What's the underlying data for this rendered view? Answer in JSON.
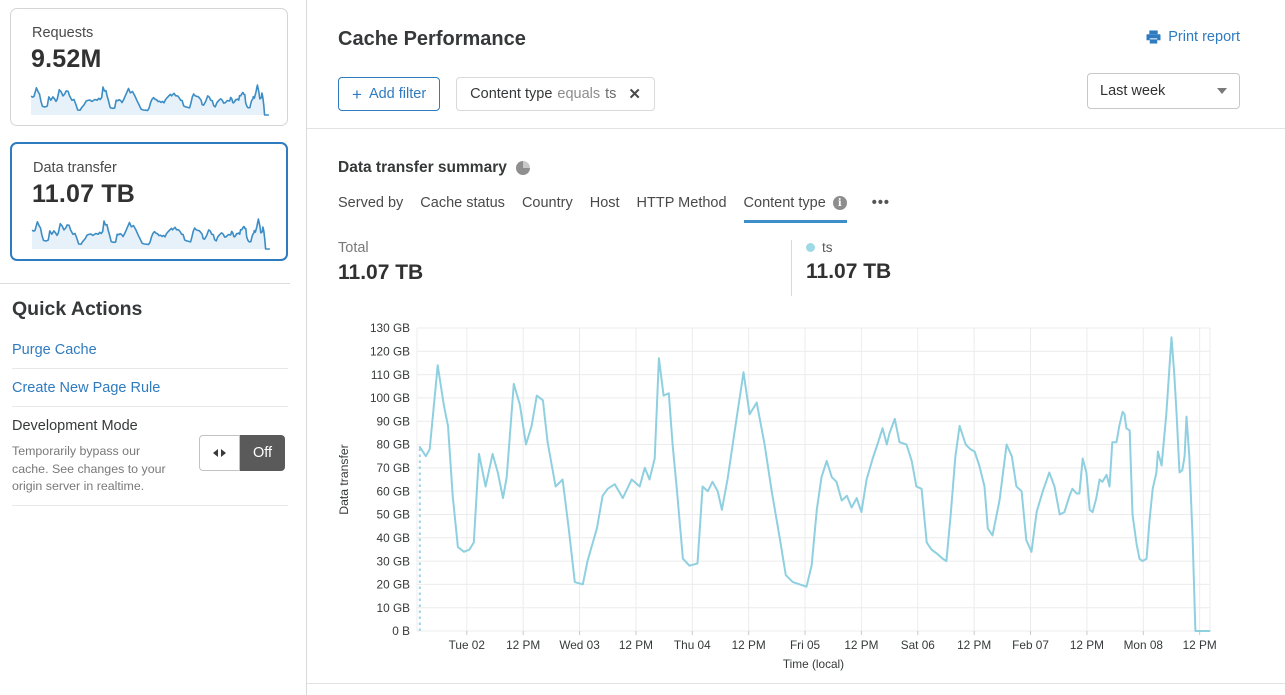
{
  "sidebar": {
    "cards": [
      {
        "label": "Requests",
        "value": "9.52M",
        "selected": false
      },
      {
        "label": "Data transfer",
        "value": "11.07 TB",
        "selected": true
      }
    ],
    "quick_actions_title": "Quick Actions",
    "links": [
      "Purge Cache",
      "Create New Page Rule"
    ],
    "dev_mode": {
      "title": "Development Mode",
      "description": "Temporarily bypass our cache. See changes to your origin server in realtime.",
      "toggle_state": "Off"
    }
  },
  "header": {
    "title": "Cache Performance",
    "print_label": "Print report"
  },
  "filters": {
    "add_filter_label": "Add filter",
    "chip_field": "Content type",
    "chip_operator": "equals",
    "chip_value": "ts",
    "time_range": "Last week"
  },
  "summary": {
    "title": "Data transfer summary",
    "tabs": [
      "Served by",
      "Cache status",
      "Country",
      "Host",
      "HTTP Method",
      "Content type"
    ],
    "active_tab": "Content type",
    "more_label": "•••",
    "total_label": "Total",
    "total_value": "11.07 TB",
    "series_name": "ts",
    "series_value": "11.07 TB"
  },
  "colors": {
    "link_blue": "#2f7bbf",
    "active_tab_underline": "#3e8fc9",
    "chart_line": "#8fd0e0",
    "legend_dot": "#9ed9e6",
    "sparkline_stroke": "#3c8dc5",
    "toggle_off_bg": "#5a5a5a"
  },
  "chart_data": {
    "type": "line",
    "title": "Data transfer summary",
    "xlabel": "Time (local)",
    "ylabel": "Data transfer",
    "x_unit": "hours",
    "x_range": [
      -0.6,
      168.2
    ],
    "ylim_gb": [
      0,
      130
    ],
    "grid": true,
    "y_ticks": [
      "0 B",
      "10 GB",
      "20 GB",
      "30 GB",
      "40 GB",
      "50 GB",
      "60 GB",
      "70 GB",
      "80 GB",
      "90 GB",
      "100 GB",
      "110 GB",
      "120 GB",
      "130 GB"
    ],
    "x_ticks": [
      {
        "h": 10,
        "label": "Tue 02"
      },
      {
        "h": 22,
        "label": "12 PM"
      },
      {
        "h": 34,
        "label": "Wed 03"
      },
      {
        "h": 46,
        "label": "12 PM"
      },
      {
        "h": 58,
        "label": "Thu 04"
      },
      {
        "h": 70,
        "label": "12 PM"
      },
      {
        "h": 82,
        "label": "Fri 05"
      },
      {
        "h": 94,
        "label": "12 PM"
      },
      {
        "h": 106,
        "label": "Sat 06"
      },
      {
        "h": 118,
        "label": "12 PM"
      },
      {
        "h": 130,
        "label": "Feb 07"
      },
      {
        "h": 142,
        "label": "12 PM"
      },
      {
        "h": 154,
        "label": "Mon 08"
      },
      {
        "h": 166,
        "label": "12 PM"
      }
    ],
    "series": [
      {
        "name": "ts",
        "color": "#8fd0e0",
        "points": [
          [
            0,
            79
          ],
          [
            1.3,
            75
          ],
          [
            2.1,
            78
          ],
          [
            3.8,
            114
          ],
          [
            5.1,
            97
          ],
          [
            6,
            88
          ],
          [
            7,
            58
          ],
          [
            8.1,
            36
          ],
          [
            9.4,
            34
          ],
          [
            10.6,
            35
          ],
          [
            11.5,
            38
          ],
          [
            12.6,
            76
          ],
          [
            14,
            62
          ],
          [
            15.5,
            76
          ],
          [
            16.6,
            68
          ],
          [
            17.7,
            57
          ],
          [
            18.5,
            66
          ],
          [
            20,
            106
          ],
          [
            21.3,
            97
          ],
          [
            22.6,
            80
          ],
          [
            23.8,
            88
          ],
          [
            24.9,
            101
          ],
          [
            26.2,
            99
          ],
          [
            27.2,
            81
          ],
          [
            28.9,
            62
          ],
          [
            30.4,
            65
          ],
          [
            31.7,
            44
          ],
          [
            33,
            21
          ],
          [
            34.7,
            20
          ],
          [
            35.7,
            30
          ],
          [
            37.7,
            44
          ],
          [
            38.9,
            58
          ],
          [
            40,
            61
          ],
          [
            41.5,
            63
          ],
          [
            43.2,
            57
          ],
          [
            45.1,
            65
          ],
          [
            46.8,
            62
          ],
          [
            47.9,
            70
          ],
          [
            48.9,
            65
          ],
          [
            50,
            74
          ],
          [
            50.9,
            117
          ],
          [
            51.9,
            101
          ],
          [
            53,
            102
          ],
          [
            53.8,
            80
          ],
          [
            54.7,
            61
          ],
          [
            56,
            31
          ],
          [
            57.4,
            28
          ],
          [
            59.1,
            29
          ],
          [
            60.2,
            62
          ],
          [
            61.3,
            60
          ],
          [
            62.3,
            64
          ],
          [
            63.4,
            60
          ],
          [
            64.3,
            52
          ],
          [
            65.5,
            65
          ],
          [
            67.4,
            91
          ],
          [
            68.9,
            111
          ],
          [
            70.2,
            93
          ],
          [
            71.7,
            98
          ],
          [
            73.4,
            80
          ],
          [
            74.9,
            60
          ],
          [
            76.6,
            40
          ],
          [
            77.9,
            24
          ],
          [
            79.4,
            21
          ],
          [
            80.9,
            20
          ],
          [
            82.3,
            19
          ],
          [
            83.4,
            28
          ],
          [
            84.5,
            52
          ],
          [
            85.5,
            66
          ],
          [
            86.6,
            73
          ],
          [
            87.7,
            66
          ],
          [
            88.7,
            64
          ],
          [
            89.8,
            56
          ],
          [
            90.9,
            58
          ],
          [
            91.9,
            53
          ],
          [
            93,
            57
          ],
          [
            94,
            51
          ],
          [
            95.1,
            65
          ],
          [
            96.4,
            74
          ],
          [
            97.4,
            80
          ],
          [
            98.5,
            87
          ],
          [
            99.4,
            80
          ],
          [
            100,
            85
          ],
          [
            101.1,
            91
          ],
          [
            102.1,
            81
          ],
          [
            103.6,
            80
          ],
          [
            104.7,
            73
          ],
          [
            105.7,
            62
          ],
          [
            106.8,
            61
          ],
          [
            107.9,
            38
          ],
          [
            108.9,
            35
          ],
          [
            110.2,
            33
          ],
          [
            111.3,
            31
          ],
          [
            112.1,
            30
          ],
          [
            113,
            50
          ],
          [
            114,
            75
          ],
          [
            114.9,
            88
          ],
          [
            116.2,
            80
          ],
          [
            117.2,
            78
          ],
          [
            118.1,
            77
          ],
          [
            119.1,
            71
          ],
          [
            120.2,
            62
          ],
          [
            120.9,
            44
          ],
          [
            121.9,
            41
          ],
          [
            123.4,
            56
          ],
          [
            124.9,
            80
          ],
          [
            126,
            75
          ],
          [
            127,
            62
          ],
          [
            128.1,
            60
          ],
          [
            129.1,
            39
          ],
          [
            130.2,
            34
          ],
          [
            131.3,
            51
          ],
          [
            132.6,
            60
          ],
          [
            134,
            68
          ],
          [
            135.1,
            62
          ],
          [
            136.2,
            50
          ],
          [
            137.2,
            51
          ],
          [
            138.3,
            58
          ],
          [
            138.9,
            61
          ],
          [
            139.8,
            59
          ],
          [
            140.4,
            59
          ],
          [
            141.1,
            74
          ],
          [
            141.9,
            68
          ],
          [
            142.6,
            52
          ],
          [
            143.2,
            51
          ],
          [
            144,
            57
          ],
          [
            144.7,
            65
          ],
          [
            145.3,
            64
          ],
          [
            146.2,
            67
          ],
          [
            146.8,
            62
          ],
          [
            147.4,
            81
          ],
          [
            148.3,
            81
          ],
          [
            148.9,
            88
          ],
          [
            149.6,
            94
          ],
          [
            150,
            93
          ],
          [
            150.4,
            87
          ],
          [
            151.1,
            86
          ],
          [
            151.7,
            50
          ],
          [
            152.6,
            37
          ],
          [
            153.2,
            31
          ],
          [
            153.8,
            30
          ],
          [
            154.7,
            31
          ],
          [
            155.3,
            47
          ],
          [
            156,
            61
          ],
          [
            156.8,
            68
          ],
          [
            157.1,
            77
          ],
          [
            157.9,
            71
          ],
          [
            158.9,
            93
          ],
          [
            159.6,
            114
          ],
          [
            160,
            126
          ],
          [
            160.6,
            110
          ],
          [
            161.1,
            93
          ],
          [
            161.7,
            68
          ],
          [
            162.3,
            69
          ],
          [
            162.8,
            75
          ],
          [
            163.2,
            92
          ],
          [
            163.8,
            75
          ],
          [
            164.5,
            40
          ],
          [
            165.1,
            0
          ],
          [
            168.1,
            0
          ]
        ]
      }
    ]
  }
}
